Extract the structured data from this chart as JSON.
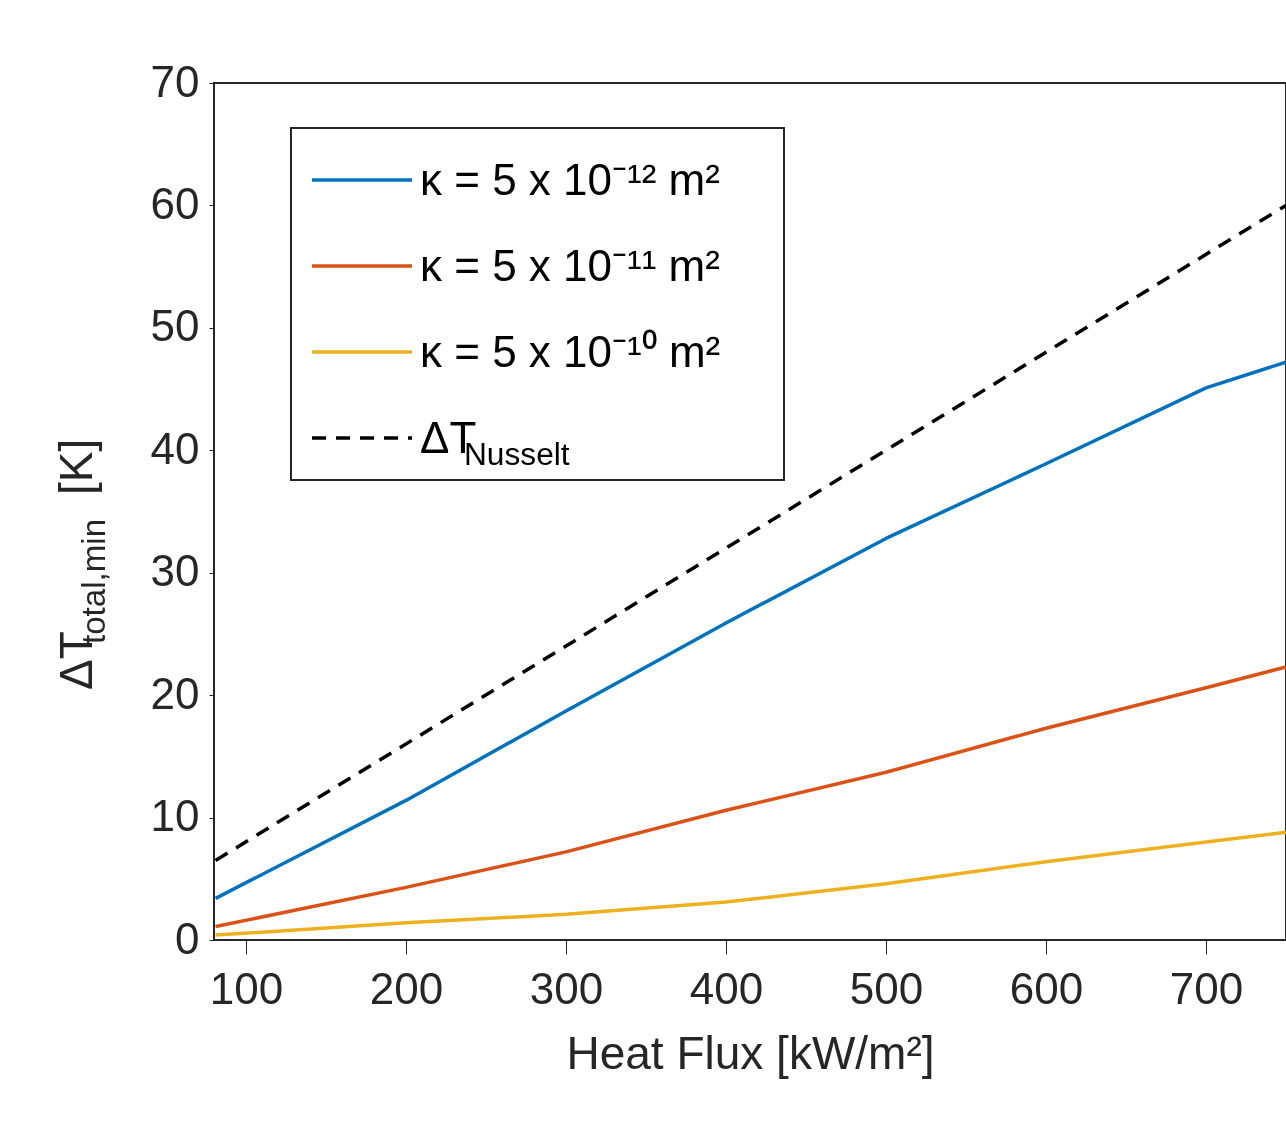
{
  "chart_data": {
    "type": "line",
    "xlabel": "Heat Flux [kW/m²]",
    "ylabel": "ΔT$_{total,min}$ [K]",
    "xlim": [
      80,
      750
    ],
    "xticks": [
      100,
      200,
      300,
      400,
      500,
      600,
      700
    ],
    "ylim": [
      0,
      70
    ],
    "yticks": [
      0,
      10,
      20,
      30,
      40,
      50,
      60,
      70
    ],
    "grid": false,
    "legend": "top left",
    "marker": "none",
    "x": [
      81,
      200,
      300,
      400,
      500,
      600,
      700,
      750
    ],
    "series": [
      {
        "name": "κ = 5 x 10⁻¹² m²",
        "color": "#0072bd",
        "line_style": "solid",
        "values": [
          3.4,
          11.4,
          18.7,
          25.9,
          32.8,
          38.9,
          45.1,
          47.2
        ]
      },
      {
        "name": "κ = 5 x 10⁻¹¹ m²",
        "color": "#d95319",
        "line_style": "solid",
        "values": [
          1.1,
          4.3,
          7.2,
          10.6,
          13.7,
          17.3,
          20.6,
          22.3
        ]
      },
      {
        "name": "κ = 5 x 10⁻¹⁰ m²",
        "color": "#edb120",
        "line_style": "solid",
        "values": [
          0.4,
          1.4,
          2.1,
          3.1,
          4.6,
          6.4,
          8.0,
          8.8
        ]
      },
      {
        "name": "ΔT$_{Nusselt}$",
        "color": "#000000",
        "line_style": "dashed",
        "x": [
          81,
          750
        ],
        "values": [
          6.5,
          60.0
        ]
      }
    ]
  }
}
